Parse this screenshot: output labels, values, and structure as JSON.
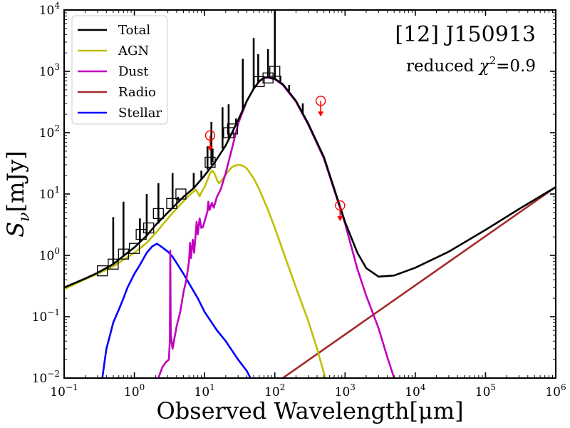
{
  "chart_data": {
    "type": "line",
    "title": "[12] J150913",
    "annotation": {
      "prefix": "reduced ",
      "chi": "χ",
      "sup": "2",
      "suffix": "=0.9"
    },
    "xlabel": "Observed Wavelength[μm]",
    "ylabel": {
      "main": "S",
      "sub": "ν",
      "unit": "[mJy]"
    },
    "xscale": "log",
    "yscale": "log",
    "xlim": [
      0.1,
      1000000
    ],
    "ylim": [
      0.01,
      10000
    ],
    "xticks": [
      {
        "v": 0.1,
        "b": "10",
        "e": "−1"
      },
      {
        "v": 1,
        "b": "10",
        "e": "0"
      },
      {
        "v": 10,
        "b": "10",
        "e": "1"
      },
      {
        "v": 100,
        "b": "10",
        "e": "2"
      },
      {
        "v": 1000,
        "b": "10",
        "e": "3"
      },
      {
        "v": 10000,
        "b": "10",
        "e": "4"
      },
      {
        "v": 100000,
        "b": "10",
        "e": "5"
      },
      {
        "v": 1000000,
        "b": "10",
        "e": "6"
      }
    ],
    "yticks": [
      {
        "v": 0.01,
        "b": "10",
        "e": "−2"
      },
      {
        "v": 0.1,
        "b": "10",
        "e": "−1"
      },
      {
        "v": 1,
        "b": "10",
        "e": "0"
      },
      {
        "v": 10,
        "b": "10",
        "e": "1"
      },
      {
        "v": 100,
        "b": "10",
        "e": "2"
      },
      {
        "v": 1000,
        "b": "10",
        "e": "3"
      },
      {
        "v": 10000,
        "b": "10",
        "e": "4"
      }
    ],
    "legend_position": "top-left",
    "series": [
      {
        "name": "Total",
        "color": "#000000",
        "points": [
          [
            0.1,
            0.3
          ],
          [
            0.2,
            0.42
          ],
          [
            0.3,
            0.52
          ],
          [
            0.5,
            0.72
          ],
          [
            0.7,
            0.98
          ],
          [
            1,
            1.35
          ],
          [
            1.5,
            2.1
          ],
          [
            2,
            3.1
          ],
          [
            3,
            5.0
          ],
          [
            5,
            9.0
          ],
          [
            7,
            12.5
          ],
          [
            10,
            20
          ],
          [
            14,
            33
          ],
          [
            20,
            62
          ],
          [
            30,
            160
          ],
          [
            40,
            330
          ],
          [
            50,
            520
          ],
          [
            60,
            690
          ],
          [
            70,
            790
          ],
          [
            80,
            800
          ],
          [
            100,
            760
          ],
          [
            130,
            620
          ],
          [
            200,
            330
          ],
          [
            300,
            140
          ],
          [
            500,
            40
          ],
          [
            1000,
            3.5
          ],
          [
            1500,
            1.1
          ],
          [
            2000,
            0.62
          ],
          [
            3000,
            0.45
          ],
          [
            5000,
            0.47
          ],
          [
            10000,
            0.63
          ],
          [
            30000,
            1.15
          ],
          [
            100000,
            2.6
          ],
          [
            300000,
            5.7
          ],
          [
            1000000,
            13
          ]
        ]
      },
      {
        "name": "AGN",
        "color": "#bfbf00",
        "points": [
          [
            0.1,
            0.28
          ],
          [
            0.2,
            0.41
          ],
          [
            0.3,
            0.5
          ],
          [
            0.5,
            0.66
          ],
          [
            0.7,
            0.85
          ],
          [
            1,
            1.1
          ],
          [
            1.5,
            1.6
          ],
          [
            2,
            2.3
          ],
          [
            3,
            4.0
          ],
          [
            4,
            5.8
          ],
          [
            5,
            7.6
          ],
          [
            6,
            9.5
          ],
          [
            7,
            11
          ],
          [
            7.5,
            11.8
          ],
          [
            8,
            10.5
          ],
          [
            8.5,
            9.2
          ],
          [
            9,
            10.6
          ],
          [
            10,
            13
          ],
          [
            11,
            17
          ],
          [
            12,
            22
          ],
          [
            13,
            24
          ],
          [
            14,
            21
          ],
          [
            15,
            17
          ],
          [
            16,
            15
          ],
          [
            17,
            16
          ],
          [
            19,
            19
          ],
          [
            22,
            24
          ],
          [
            25,
            28
          ],
          [
            30,
            30
          ],
          [
            35,
            29
          ],
          [
            40,
            26
          ],
          [
            50,
            18
          ],
          [
            60,
            12
          ],
          [
            80,
            5.5
          ],
          [
            100,
            2.8
          ],
          [
            130,
            1.2
          ],
          [
            200,
            0.3
          ],
          [
            300,
            0.085
          ],
          [
            400,
            0.03
          ],
          [
            500,
            0.012
          ],
          [
            520,
            0.01
          ]
        ]
      },
      {
        "name": "Dust",
        "color": "#bf00bf",
        "points": [
          [
            2.2,
            0.01
          ],
          [
            2.5,
            0.015
          ],
          [
            2.8,
            0.018
          ],
          [
            3.1,
            0.02
          ],
          [
            3.2,
            0.04
          ],
          [
            3.25,
            1.2
          ],
          [
            3.3,
            0.05
          ],
          [
            3.5,
            0.03
          ],
          [
            4,
            0.07
          ],
          [
            4.5,
            0.12
          ],
          [
            5,
            0.25
          ],
          [
            5.5,
            0.4
          ],
          [
            6,
            0.8
          ],
          [
            6.2,
            1.6
          ],
          [
            6.4,
            0.9
          ],
          [
            6.8,
            1.8
          ],
          [
            7.1,
            1.1
          ],
          [
            7.7,
            3.5
          ],
          [
            8,
            2.2
          ],
          [
            8.5,
            4.0
          ],
          [
            9,
            2.8
          ],
          [
            9.5,
            2.9
          ],
          [
            10,
            3.6
          ],
          [
            11,
            5.2
          ],
          [
            11.3,
            7.5
          ],
          [
            11.8,
            5.5
          ],
          [
            12.7,
            7.2
          ],
          [
            13.5,
            6
          ],
          [
            15,
            9
          ],
          [
            17,
            12
          ],
          [
            20,
            22
          ],
          [
            25,
            60
          ],
          [
            30,
            140
          ],
          [
            40,
            330
          ],
          [
            50,
            520
          ],
          [
            60,
            680
          ],
          [
            70,
            780
          ],
          [
            80,
            790
          ],
          [
            100,
            740
          ],
          [
            130,
            600
          ],
          [
            200,
            320
          ],
          [
            300,
            135
          ],
          [
            500,
            38
          ],
          [
            1000,
            3.3
          ],
          [
            1500,
            0.6
          ],
          [
            2000,
            0.22
          ],
          [
            3000,
            0.065
          ],
          [
            4000,
            0.022
          ],
          [
            5000,
            0.01
          ]
        ]
      },
      {
        "name": "Radio",
        "color": "#a52a2a",
        "points": [
          [
            130,
            0.01
          ],
          [
            1000000,
            13
          ]
        ]
      },
      {
        "name": "Stellar",
        "color": "#0000ff",
        "points": [
          [
            0.35,
            0.01
          ],
          [
            0.4,
            0.03
          ],
          [
            0.45,
            0.05
          ],
          [
            0.5,
            0.08
          ],
          [
            0.6,
            0.13
          ],
          [
            0.7,
            0.2
          ],
          [
            0.8,
            0.3
          ],
          [
            1,
            0.5
          ],
          [
            1.2,
            0.7
          ],
          [
            1.5,
            1.1
          ],
          [
            1.8,
            1.4
          ],
          [
            2.1,
            1.55
          ],
          [
            2.5,
            1.35
          ],
          [
            3,
            1.15
          ],
          [
            3.5,
            0.95
          ],
          [
            4,
            0.75
          ],
          [
            5,
            0.5
          ],
          [
            6,
            0.35
          ],
          [
            8,
            0.2
          ],
          [
            10,
            0.12
          ],
          [
            15,
            0.06
          ],
          [
            20,
            0.04
          ],
          [
            30,
            0.02
          ],
          [
            40,
            0.013
          ],
          [
            45,
            0.01
          ]
        ]
      }
    ],
    "lines": [
      {
        "x": 0.5,
        "y1": 0.72,
        "y2": 4.2
      },
      {
        "x": 0.7,
        "y1": 0.98,
        "y2": 7.5
      },
      {
        "x": 1.2,
        "y1": 1.6,
        "y2": 4.0
      },
      {
        "x": 1.5,
        "y1": 2.1,
        "y2": 10
      },
      {
        "x": 2.2,
        "y1": 3.3,
        "y2": 15
      },
      {
        "x": 3.5,
        "y1": 6,
        "y2": 22
      },
      {
        "x": 4.2,
        "y1": 7.8,
        "y2": 9
      },
      {
        "x": 7,
        "y1": 12.5,
        "y2": 22
      },
      {
        "x": 9,
        "y1": 17,
        "y2": 24
      },
      {
        "x": 11,
        "y1": 25,
        "y2": 60
      },
      {
        "x": 12.5,
        "y1": 30,
        "y2": 150
      },
      {
        "x": 13,
        "y1": 33,
        "y2": 55
      },
      {
        "x": 18,
        "y1": 55,
        "y2": 260
      },
      {
        "x": 22,
        "y1": 80,
        "y2": 290
      },
      {
        "x": 28,
        "y1": 140,
        "y2": 170
      },
      {
        "x": 35,
        "y1": 230,
        "y2": 1600
      },
      {
        "x": 50,
        "y1": 520,
        "y2": 3500
      },
      {
        "x": 58,
        "y1": 650,
        "y2": 1900
      },
      {
        "x": 80,
        "y1": 800,
        "y2": 2300
      },
      {
        "x": 100,
        "y1": 760,
        "y2": 10000
      },
      {
        "x": 120,
        "y1": 680,
        "y2": 850
      },
      {
        "x": 160,
        "y1": 480,
        "y2": 600
      },
      {
        "x": 250,
        "y1": 200,
        "y2": 300
      }
    ],
    "photometry": {
      "marker": "open-square",
      "color": "#000000",
      "points": [
        [
          0.35,
          0.56
        ],
        [
          0.5,
          0.72
        ],
        [
          0.7,
          1.05
        ],
        [
          1.0,
          1.3
        ],
        [
          1.25,
          2.2
        ],
        [
          1.6,
          2.8
        ],
        [
          2.2,
          4.8
        ],
        [
          3.4,
          7.0
        ],
        [
          4.6,
          10
        ],
        [
          12,
          33
        ],
        [
          22,
          100
        ],
        [
          25,
          115
        ],
        [
          60,
          680
        ],
        [
          80,
          780
        ],
        [
          100,
          1000
        ]
      ]
    },
    "upper_limits": {
      "marker": "open-circle-down-arrow",
      "color": "#ff0000",
      "points": [
        [
          12,
          90
        ],
        [
          450,
          330
        ],
        [
          850,
          6.5
        ]
      ]
    }
  }
}
